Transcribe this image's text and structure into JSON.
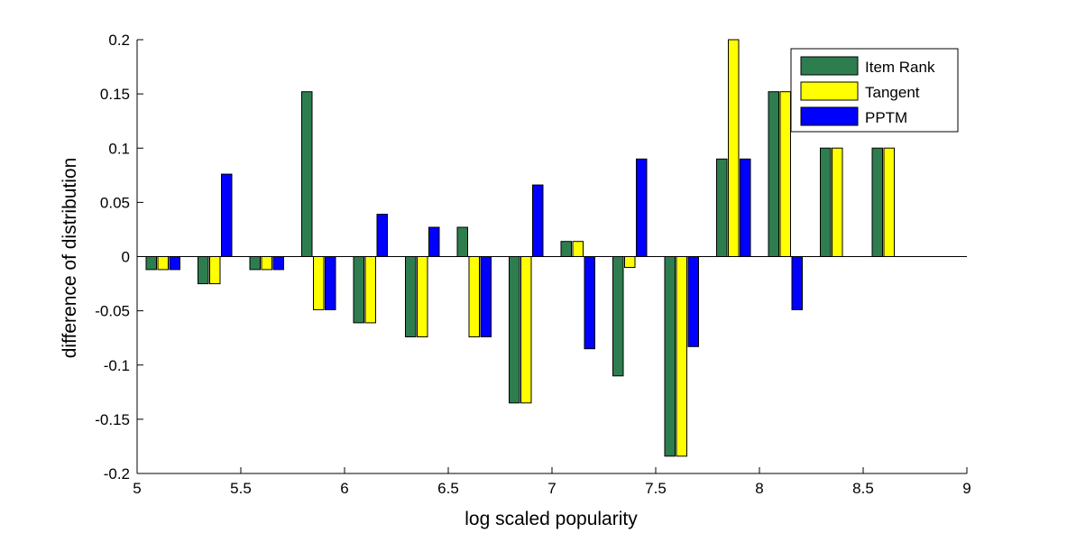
{
  "chart_data": {
    "type": "bar",
    "title": "",
    "xlabel": "log scaled popularity",
    "ylabel": "difference of distribution",
    "xlim": [
      5,
      9
    ],
    "ylim": [
      -0.2,
      0.2
    ],
    "x_ticks": [
      "5",
      "5.5",
      "6",
      "6.5",
      "7",
      "7.5",
      "8",
      "8.5",
      "9"
    ],
    "y_ticks": [
      "-0.2",
      "-0.15",
      "-0.1",
      "-0.05",
      "0",
      "0.05",
      "0.1",
      "0.15",
      "0.2"
    ],
    "grid": false,
    "legend_position": "top-right",
    "x": [
      5.125,
      5.375,
      5.625,
      5.875,
      6.125,
      6.375,
      6.625,
      6.875,
      7.125,
      7.375,
      7.625,
      7.875,
      8.125,
      8.375,
      8.625
    ],
    "series": [
      {
        "name": "Item Rank",
        "color": "#2e7d4f",
        "values": [
          -0.012,
          -0.025,
          -0.012,
          0.152,
          -0.061,
          -0.074,
          0.027,
          -0.135,
          0.014,
          -0.11,
          -0.184,
          0.09,
          0.152,
          0.1,
          0.1
        ]
      },
      {
        "name": "Tangent",
        "color": "#ffff00",
        "values": [
          -0.012,
          -0.025,
          -0.012,
          -0.049,
          -0.061,
          -0.074,
          -0.074,
          -0.135,
          0.014,
          -0.01,
          -0.184,
          0.2,
          0.152,
          0.1,
          0.1
        ]
      },
      {
        "name": "PPTM",
        "color": "#0000ff",
        "values": [
          -0.012,
          0.076,
          -0.012,
          -0.049,
          0.039,
          0.027,
          -0.074,
          0.066,
          -0.085,
          0.09,
          -0.083,
          0.09,
          -0.049,
          0,
          0
        ]
      }
    ]
  }
}
